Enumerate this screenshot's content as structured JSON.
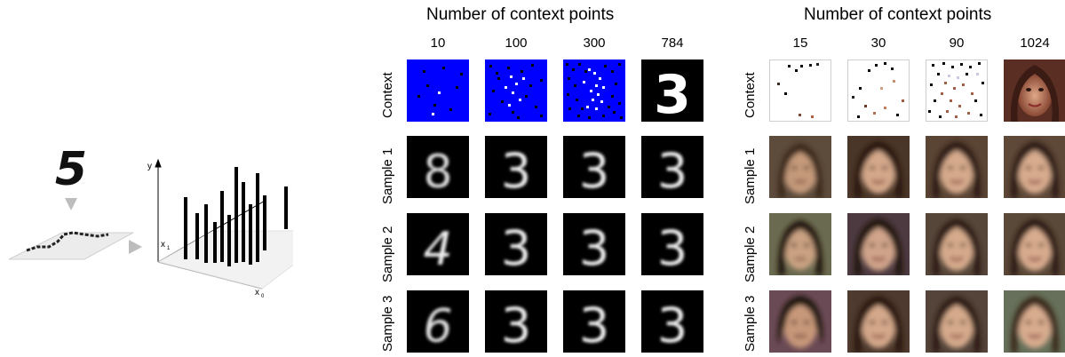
{
  "mnist_panel": {
    "title": "Number of context points",
    "columns": [
      "10",
      "100",
      "300",
      "784"
    ],
    "rows": [
      "Context",
      "Sample 1",
      "Sample 2",
      "Sample 3"
    ],
    "samples": [
      [
        "8",
        "3",
        "3",
        "3"
      ],
      [
        "4",
        "3",
        "3",
        "3"
      ],
      [
        "6",
        "3",
        "3",
        "3"
      ]
    ],
    "full_context_digit": "3"
  },
  "celeba_panel": {
    "title": "Number of context points",
    "columns": [
      "15",
      "30",
      "90",
      "1024"
    ],
    "rows": [
      "Context",
      "Sample 1",
      "Sample 2",
      "Sample 3"
    ]
  },
  "schematic": {
    "digit": "5",
    "axis_y": "y",
    "axis_x1": "x",
    "axis_x1_sub": "1",
    "axis_x0": "x",
    "axis_x0_sub": "0"
  },
  "colors": {
    "mnist_context_bg": "#0000ff",
    "tile_bg": "#000000"
  }
}
